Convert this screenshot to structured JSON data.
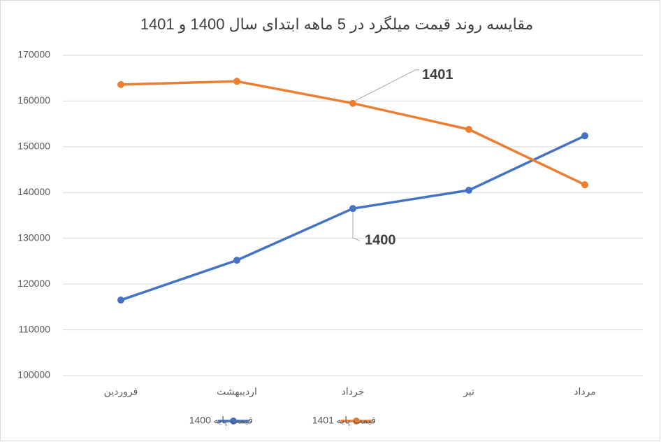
{
  "chart_data": {
    "type": "line",
    "title": "مقایسه روند قیمت میلگرد در 5 ماهه ابتدای سال 1400 و 1401",
    "categories": [
      "فروردین",
      "اردیبهشت",
      "خرداد",
      "تیر",
      "مرداد"
    ],
    "series": [
      {
        "name": "قیمت پایه 1400",
        "color": "#4472c4",
        "values": [
          116500,
          125200,
          136500,
          140500,
          152400
        ]
      },
      {
        "name": "قیمت پایه 1401",
        "color": "#ed7d31",
        "values": [
          163600,
          164300,
          159500,
          153800,
          141700
        ]
      }
    ],
    "annotations": [
      "1400",
      "1401"
    ],
    "ylim": [
      100000,
      170000
    ],
    "yticks": [
      100000,
      110000,
      120000,
      130000,
      140000,
      150000,
      160000,
      170000
    ],
    "grid": true,
    "legend": "bottom"
  }
}
